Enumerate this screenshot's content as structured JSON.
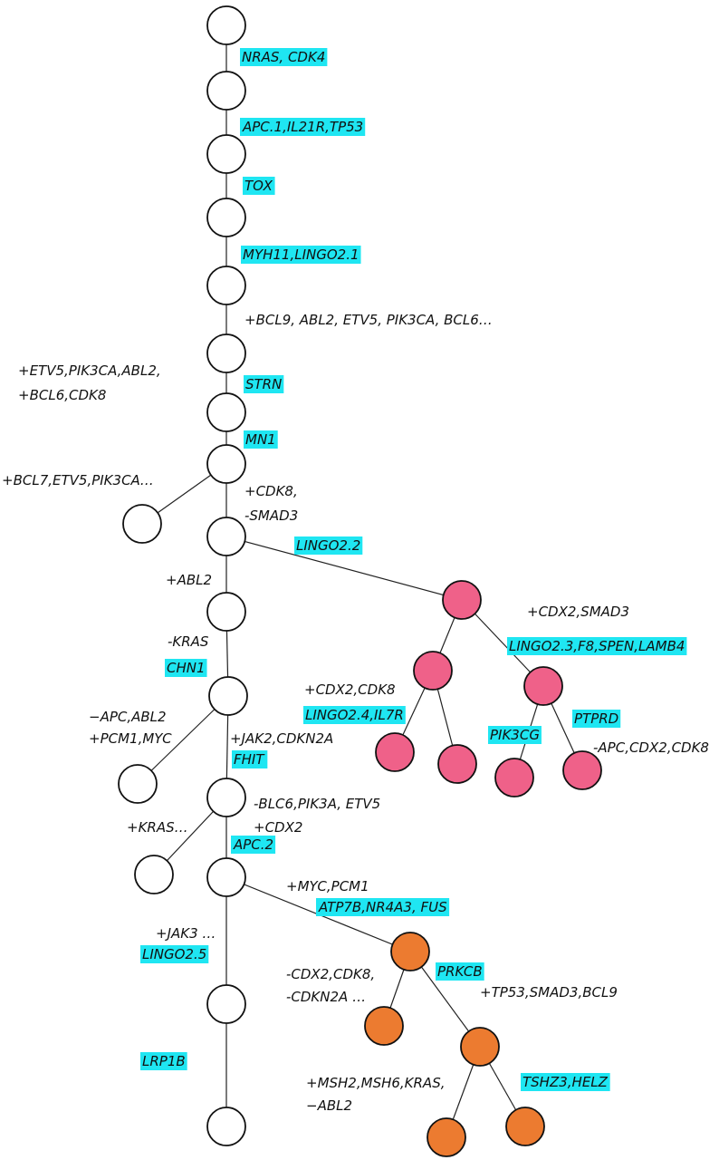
{
  "gene_labels": [
    "NRAS, CDK4",
    "APC.1,IL21R,TP53",
    "TOX",
    "MYH11,LINGO2.1",
    "STRN",
    "MN1",
    "LINGO2.2",
    "LINGO2.3,F8,SPEN,LAMB4",
    "CHN1",
    "LINGO2.4,IL7R",
    "PIK3CG",
    "PTPRD",
    "FHIT",
    "APC.2",
    "ATP7B,NR4A3, FUS",
    "LINGO2.5",
    "PRKCB",
    "LRP1B",
    "TSHZ3,HELZ"
  ],
  "event_labels": [
    "+BCL9, ABL2, ETV5, PIK3CA, BCL6…",
    "+ETV5,PIK3CA,ABL2,",
    "+BCL6,CDK8",
    "+BCL7,ETV5,PIK3CA…",
    "+CDK8,",
    "-SMAD3",
    "+ABL2",
    "+CDX2,SMAD3",
    "-KRAS",
    "+CDX2,CDK8",
    "−APC,ABL2",
    "+PCM1,MYC",
    "+JAK2,CDKN2A",
    "-APC,CDX2,CDK8",
    "-BLC6,PIK3A, ETV5",
    "+KRAS…",
    "+CDX2",
    "+MYC,PCM1",
    "+JAK3 …",
    "-CDX2,CDK8,",
    "-CDKN2A …",
    "+TP53,SMAD3,BCL9",
    "+MSH2,MSH6,KRAS,",
    "−ABL2"
  ]
}
